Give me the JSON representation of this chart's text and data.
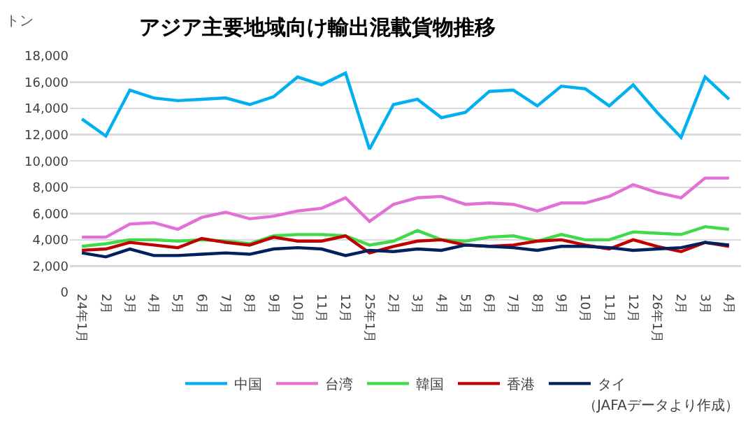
{
  "chart_data": {
    "type": "line",
    "title": "アジア主要地域向け輸出混載貨物推移",
    "ylabel": "トン",
    "categories": [
      "24年1月",
      "2月",
      "3月",
      "4月",
      "5月",
      "6月",
      "7月",
      "8月",
      "9月",
      "10月",
      "11月",
      "12月",
      "25年1月",
      "2月",
      "3月",
      "4月",
      "5月",
      "6月",
      "7月",
      "8月",
      "9月",
      "10月",
      "11月",
      "12月",
      "26年1月",
      "2月",
      "3月",
      "4月"
    ],
    "series": [
      {
        "name": "中国",
        "color": "#00b0f0",
        "values": [
          13200,
          11900,
          15400,
          14800,
          14600,
          14700,
          14800,
          14300,
          14900,
          16400,
          15800,
          16700,
          10900,
          14300,
          14700,
          13300,
          13700,
          15300,
          15400,
          14200,
          15700,
          15500,
          14200,
          15800,
          13700,
          11800,
          16400,
          14700
        ]
      },
      {
        "name": "台湾",
        "color": "#e46fd6",
        "values": [
          4200,
          4200,
          5200,
          5300,
          4800,
          5700,
          6100,
          5600,
          5800,
          6200,
          6400,
          7200,
          5400,
          6700,
          7200,
          7300,
          6700,
          6800,
          6700,
          6200,
          6800,
          6800,
          7300,
          8200,
          7600,
          7200,
          8700,
          8700
        ]
      },
      {
        "name": "韓国",
        "color": "#3fd94a",
        "values": [
          3500,
          3700,
          4000,
          4000,
          3900,
          4000,
          3900,
          3700,
          4300,
          4400,
          4400,
          4300,
          3600,
          3900,
          4700,
          4000,
          3900,
          4200,
          4300,
          3900,
          4400,
          4000,
          4000,
          4600,
          4500,
          4400,
          5000,
          4800
        ]
      },
      {
        "name": "香港",
        "color": "#c00000",
        "values": [
          3200,
          3300,
          3800,
          3600,
          3400,
          4100,
          3800,
          3600,
          4200,
          3900,
          3900,
          4300,
          3000,
          3500,
          3900,
          4000,
          3600,
          3500,
          3600,
          3900,
          4000,
          3600,
          3300,
          4000,
          3500,
          3100,
          3800,
          3500
        ]
      },
      {
        "name": "タイ",
        "color": "#002060",
        "values": [
          3000,
          2700,
          3300,
          2800,
          2800,
          2900,
          3000,
          2900,
          3300,
          3400,
          3300,
          2800,
          3200,
          3100,
          3300,
          3200,
          3600,
          3500,
          3400,
          3200,
          3500,
          3500,
          3400,
          3200,
          3300,
          3400,
          3800,
          3600
        ]
      }
    ],
    "ylim": [
      0,
      18000
    ],
    "yticks": [
      {
        "value": 0,
        "label": "0"
      },
      {
        "value": 2000,
        "label": "2,000"
      },
      {
        "value": 4000,
        "label": "4,000"
      },
      {
        "value": 6000,
        "label": "6,000"
      },
      {
        "value": 8000,
        "label": "8,000"
      },
      {
        "value": 10000,
        "label": "10,000"
      },
      {
        "value": 12000,
        "label": "12,000"
      },
      {
        "value": 14000,
        "label": "14,000"
      },
      {
        "value": 16000,
        "label": "16,000"
      },
      {
        "value": 18000,
        "label": "18,000"
      }
    ],
    "grid": "y",
    "legend": "bottom",
    "annotations": [
      "（JAFAデータより作成）"
    ]
  }
}
